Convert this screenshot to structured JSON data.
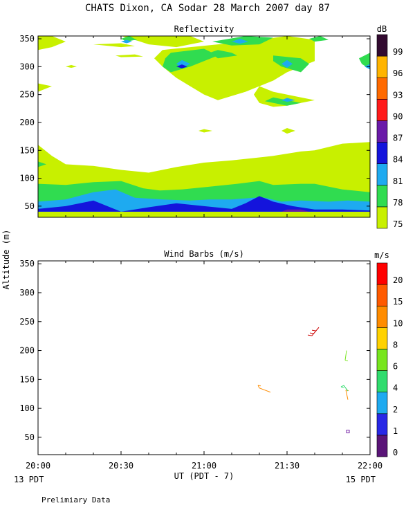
{
  "title": "CHATS Dixon, CA   Sodar  28 March 2007   day  87",
  "footer_note": "Prelimiary Data",
  "colors": {
    "c75": "#c8f000",
    "c78": "#30dc50",
    "c81": "#1eaaf0",
    "c84": "#1414dc",
    "c87": "#6a1aa8",
    "c90": "#ff1a1a",
    "c93": "#ff6a00",
    "c96": "#ffb400",
    "c99": "#320a30"
  },
  "chart_data": [
    {
      "type": "heatmap",
      "title": "Reflectivity",
      "ylabel": "Altitude (m)",
      "xlim": [
        "20:00",
        "22:00"
      ],
      "ylim": [
        30,
        355
      ],
      "y_ticks": [
        50,
        100,
        150,
        200,
        250,
        300,
        350
      ],
      "colorbar": {
        "unit": "dB",
        "levels": [
          75,
          78,
          81,
          84,
          87,
          90,
          93,
          96,
          99
        ],
        "colors": [
          "#c8f000",
          "#30dc50",
          "#1eaaf0",
          "#1414dc",
          "#6a1aa8",
          "#ff1a1a",
          "#ff6a00",
          "#ffb400",
          "#320a30"
        ]
      },
      "layers": [
        {
          "level": 75,
          "polygons": [
            [
              [
                0,
                40
              ],
              [
                120,
                40
              ],
              [
                120,
                165
              ],
              [
                110,
                162
              ],
              [
                100,
                150
              ],
              [
                95,
                148
              ],
              [
                85,
                140
              ],
              [
                70,
                132
              ],
              [
                60,
                128
              ],
              [
                50,
                120
              ],
              [
                40,
                110
              ],
              [
                30,
                115
              ],
              [
                20,
                122
              ],
              [
                10,
                125
              ],
              [
                5,
                140
              ],
              [
                0,
                160
              ]
            ],
            [
              [
                0,
                355
              ],
              [
                5,
                355
              ],
              [
                10,
                345
              ],
              [
                5,
                335
              ],
              [
                0,
                330
              ]
            ],
            [
              [
                20,
                340
              ],
              [
                30,
                342
              ],
              [
                35,
                337
              ],
              [
                30,
                335
              ]
            ],
            [
              [
                0,
                270
              ],
              [
                5,
                265
              ],
              [
                0,
                255
              ]
            ],
            [
              [
                30,
                355
              ],
              [
                55,
                355
              ],
              [
                60,
                345
              ],
              [
                50,
                335
              ],
              [
                40,
                340
              ],
              [
                35,
                348
              ]
            ],
            [
              [
                45,
                330
              ],
              [
                75,
                345
              ],
              [
                90,
                355
              ],
              [
                100,
                348
              ],
              [
                100,
                310
              ],
              [
                90,
                290
              ],
              [
                85,
                275
              ],
              [
                75,
                255
              ],
              [
                65,
                240
              ],
              [
                60,
                250
              ],
              [
                55,
                265
              ],
              [
                50,
                280
              ],
              [
                45,
                300
              ],
              [
                42,
                315
              ]
            ],
            [
              [
                85,
                335
              ],
              [
                90,
                345
              ],
              [
                95,
                330
              ],
              [
                90,
                320
              ],
              [
                85,
                320
              ]
            ],
            [
              [
                80,
                265
              ],
              [
                85,
                255
              ],
              [
                95,
                245
              ],
              [
                100,
                240
              ],
              [
                90,
                230
              ],
              [
                85,
                228
              ],
              [
                80,
                235
              ],
              [
                78,
                250
              ]
            ],
            [
              [
                0,
                20
              ],
              [
                0,
                40
              ],
              [
                120,
                40
              ],
              [
                120,
                20
              ]
            ],
            [
              [
                10,
                300
              ],
              [
                12,
                303
              ],
              [
                14,
                300
              ],
              [
                12,
                298
              ]
            ],
            [
              [
                28,
                320
              ],
              [
                35,
                322
              ],
              [
                38,
                318
              ],
              [
                30,
                317
              ]
            ],
            [
              [
                58,
                185
              ],
              [
                60,
                188
              ],
              [
                63,
                185
              ],
              [
                60,
                182
              ]
            ],
            [
              [
                88,
                185
              ],
              [
                90,
                190
              ],
              [
                93,
                185
              ],
              [
                90,
                180
              ]
            ],
            [
              [
                116,
                145
              ],
              [
                120,
                150
              ],
              [
                120,
                135
              ],
              [
                117,
                138
              ]
            ]
          ]
        },
        {
          "level": 78,
          "polygons": [
            [
              [
                0,
                40
              ],
              [
                120,
                40
              ],
              [
                120,
                75
              ],
              [
                110,
                80
              ],
              [
                100,
                90
              ],
              [
                95,
                90
              ],
              [
                85,
                88
              ],
              [
                80,
                95
              ],
              [
                72,
                90
              ],
              [
                62,
                85
              ],
              [
                52,
                80
              ],
              [
                44,
                78
              ],
              [
                38,
                82
              ],
              [
                30,
                95
              ],
              [
                20,
                93
              ],
              [
                10,
                88
              ],
              [
                0,
                90
              ]
            ],
            [
              [
                0,
                120
              ],
              [
                3,
                125
              ],
              [
                0,
                130
              ]
            ],
            [
              [
                30,
                350
              ],
              [
                32,
                352
              ],
              [
                35,
                348
              ],
              [
                32,
                345
              ]
            ],
            [
              [
                48,
                325
              ],
              [
                60,
                332
              ],
              [
                65,
                320
              ],
              [
                55,
                300
              ],
              [
                48,
                290
              ],
              [
                45,
                300
              ],
              [
                46,
                315
              ]
            ],
            [
              [
                65,
                330
              ],
              [
                70,
                325
              ],
              [
                72,
                320
              ],
              [
                65,
                315
              ],
              [
                62,
                325
              ]
            ],
            [
              [
                85,
                320
              ],
              [
                95,
                315
              ],
              [
                98,
                305
              ],
              [
                95,
                290
              ],
              [
                88,
                300
              ],
              [
                85,
                310
              ]
            ],
            [
              [
                85,
                245
              ],
              [
                95,
                235
              ],
              [
                90,
                230
              ],
              [
                82,
                238
              ]
            ],
            [
              [
                63,
                345
              ],
              [
                75,
                355
              ],
              [
                85,
                352
              ],
              [
                80,
                340
              ],
              [
                70,
                338
              ]
            ],
            [
              [
                98,
                350
              ],
              [
                102,
                355
              ],
              [
                105,
                348
              ],
              [
                100,
                345
              ]
            ],
            [
              [
                116,
                315
              ],
              [
                120,
                325
              ],
              [
                120,
                295
              ],
              [
                117,
                305
              ]
            ],
            [
              [
                30,
                350
              ],
              [
                33,
                355
              ],
              [
                36,
                347
              ]
            ]
          ]
        },
        {
          "level": 81,
          "polygons": [
            [
              [
                0,
                40
              ],
              [
                120,
                40
              ],
              [
                120,
                58
              ],
              [
                112,
                60
              ],
              [
                105,
                58
              ],
              [
                95,
                60
              ],
              [
                88,
                58
              ],
              [
                82,
                65
              ],
              [
                78,
                65
              ],
              [
                70,
                62
              ],
              [
                62,
                62
              ],
              [
                55,
                60
              ],
              [
                45,
                62
              ],
              [
                35,
                65
              ],
              [
                28,
                80
              ],
              [
                20,
                75
              ],
              [
                10,
                62
              ],
              [
                0,
                58
              ]
            ],
            [
              [
                50,
                305
              ],
              [
                52,
                312
              ],
              [
                55,
                305
              ],
              [
                52,
                298
              ]
            ],
            [
              [
                30,
                345
              ],
              [
                32,
                348
              ],
              [
                34,
                345
              ],
              [
                32,
                342
              ]
            ],
            [
              [
                88,
                305
              ],
              [
                90,
                312
              ],
              [
                92,
                305
              ],
              [
                90,
                298
              ]
            ],
            [
              [
                88,
                240
              ],
              [
                90,
                244
              ],
              [
                93,
                240
              ],
              [
                90,
                237
              ]
            ],
            [
              [
                118,
                300
              ],
              [
                120,
                305
              ],
              [
                120,
                295
              ]
            ],
            [
              [
                70,
                345
              ],
              [
                73,
                350
              ],
              [
                76,
                345
              ],
              [
                73,
                341
              ]
            ]
          ]
        },
        {
          "level": 84,
          "polygons": [
            [
              [
                0,
                40
              ],
              [
                120,
                40
              ],
              [
                120,
                42
              ],
              [
                110,
                44
              ],
              [
                100,
                44
              ],
              [
                92,
                50
              ],
              [
                85,
                58
              ],
              [
                80,
                68
              ],
              [
                75,
                55
              ],
              [
                70,
                45
              ],
              [
                60,
                50
              ],
              [
                50,
                55
              ],
              [
                40,
                48
              ],
              [
                30,
                40
              ],
              [
                20,
                60
              ],
              [
                10,
                50
              ],
              [
                0,
                45
              ]
            ],
            [
              [
                50,
                300
              ],
              [
                52,
                304
              ],
              [
                54,
                300
              ],
              [
                52,
                297
              ]
            ]
          ]
        },
        {
          "level": 87,
          "polygons": [
            [
              [
                88,
                40
              ],
              [
                90,
                44
              ],
              [
                95,
                44
              ],
              [
                98,
                40
              ]
            ]
          ]
        }
      ]
    },
    {
      "type": "scatter",
      "title": "Wind Barbs (m/s)",
      "ylabel": "Altitude (m)",
      "xlabel": "UT  (PDT - 7)",
      "xlim": [
        "20:00",
        "22:00"
      ],
      "x_ticks": [
        "20:00",
        "20:30",
        "21:00",
        "21:30",
        "22:00"
      ],
      "ylim": [
        20,
        355
      ],
      "y_ticks": [
        50,
        100,
        150,
        200,
        250,
        300,
        350
      ],
      "left_note": "13 PDT",
      "right_note": "15 PDT",
      "colorbar": {
        "unit": "m/s",
        "levels": [
          0,
          1,
          2,
          4,
          6,
          8,
          10,
          15,
          20
        ],
        "colors": [
          "#5a1478",
          "#2828e6",
          "#1eaaf0",
          "#30dc6e",
          "#78e61e",
          "#ffd200",
          "#ff8c00",
          "#ff5a00",
          "#ff0000"
        ]
      },
      "barbs": [
        {
          "time_min": 101.5,
          "altitude": 240,
          "color": "#cc0000"
        },
        {
          "time_min": 111.5,
          "altitude": 200,
          "color": "#78e61e"
        },
        {
          "time_min": 112,
          "altitude": 115,
          "color": "#ff8c00"
        },
        {
          "time_min": 112,
          "altitude": 130,
          "color": "#30dc6e"
        },
        {
          "time_min": 84,
          "altitude": 128,
          "color": "#ff8c00"
        },
        {
          "time_min": 112,
          "altitude": 60,
          "color": "#7a2aa8"
        }
      ]
    }
  ]
}
